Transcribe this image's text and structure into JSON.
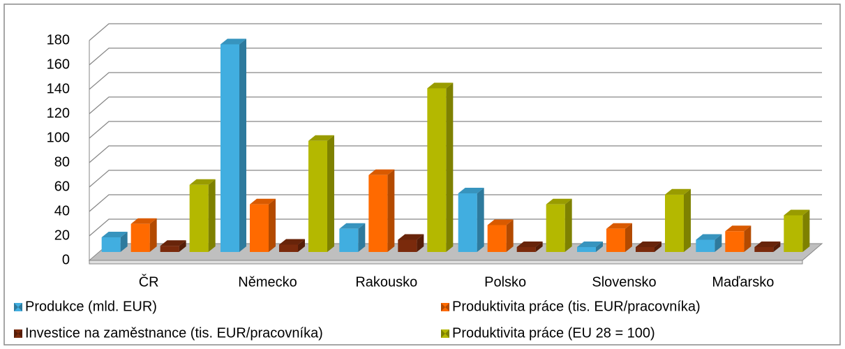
{
  "chart_data": {
    "type": "bar3d",
    "categories": [
      "ČR",
      "Německo",
      "Rakousko",
      "Polsko",
      "Slovensko",
      "Maďarsko"
    ],
    "series": [
      {
        "name": "Produkce (mld. EUR)",
        "color": "#41aee0",
        "values": [
          12,
          170,
          19,
          48,
          4,
          10
        ]
      },
      {
        "name": "Produktivita práce (tis. EUR/pracovníka)",
        "color": "#ff6a00",
        "values": [
          23,
          39,
          63,
          22,
          19,
          17
        ]
      },
      {
        "name": "Investice na zaměstnance (tis. EUR/pracovníka)",
        "color": "#7a2a0c",
        "values": [
          5,
          6,
          10,
          4,
          4,
          4
        ]
      },
      {
        "name": "Produktivita práce (EU 28 = 100)",
        "color": "#b4b800",
        "values": [
          55,
          91,
          134,
          39,
          47,
          30
        ]
      }
    ],
    "ylim": [
      0,
      180
    ],
    "yticks": [
      0,
      20,
      40,
      60,
      80,
      100,
      120,
      140,
      160,
      180
    ],
    "grid": true,
    "legend": "bottom"
  }
}
